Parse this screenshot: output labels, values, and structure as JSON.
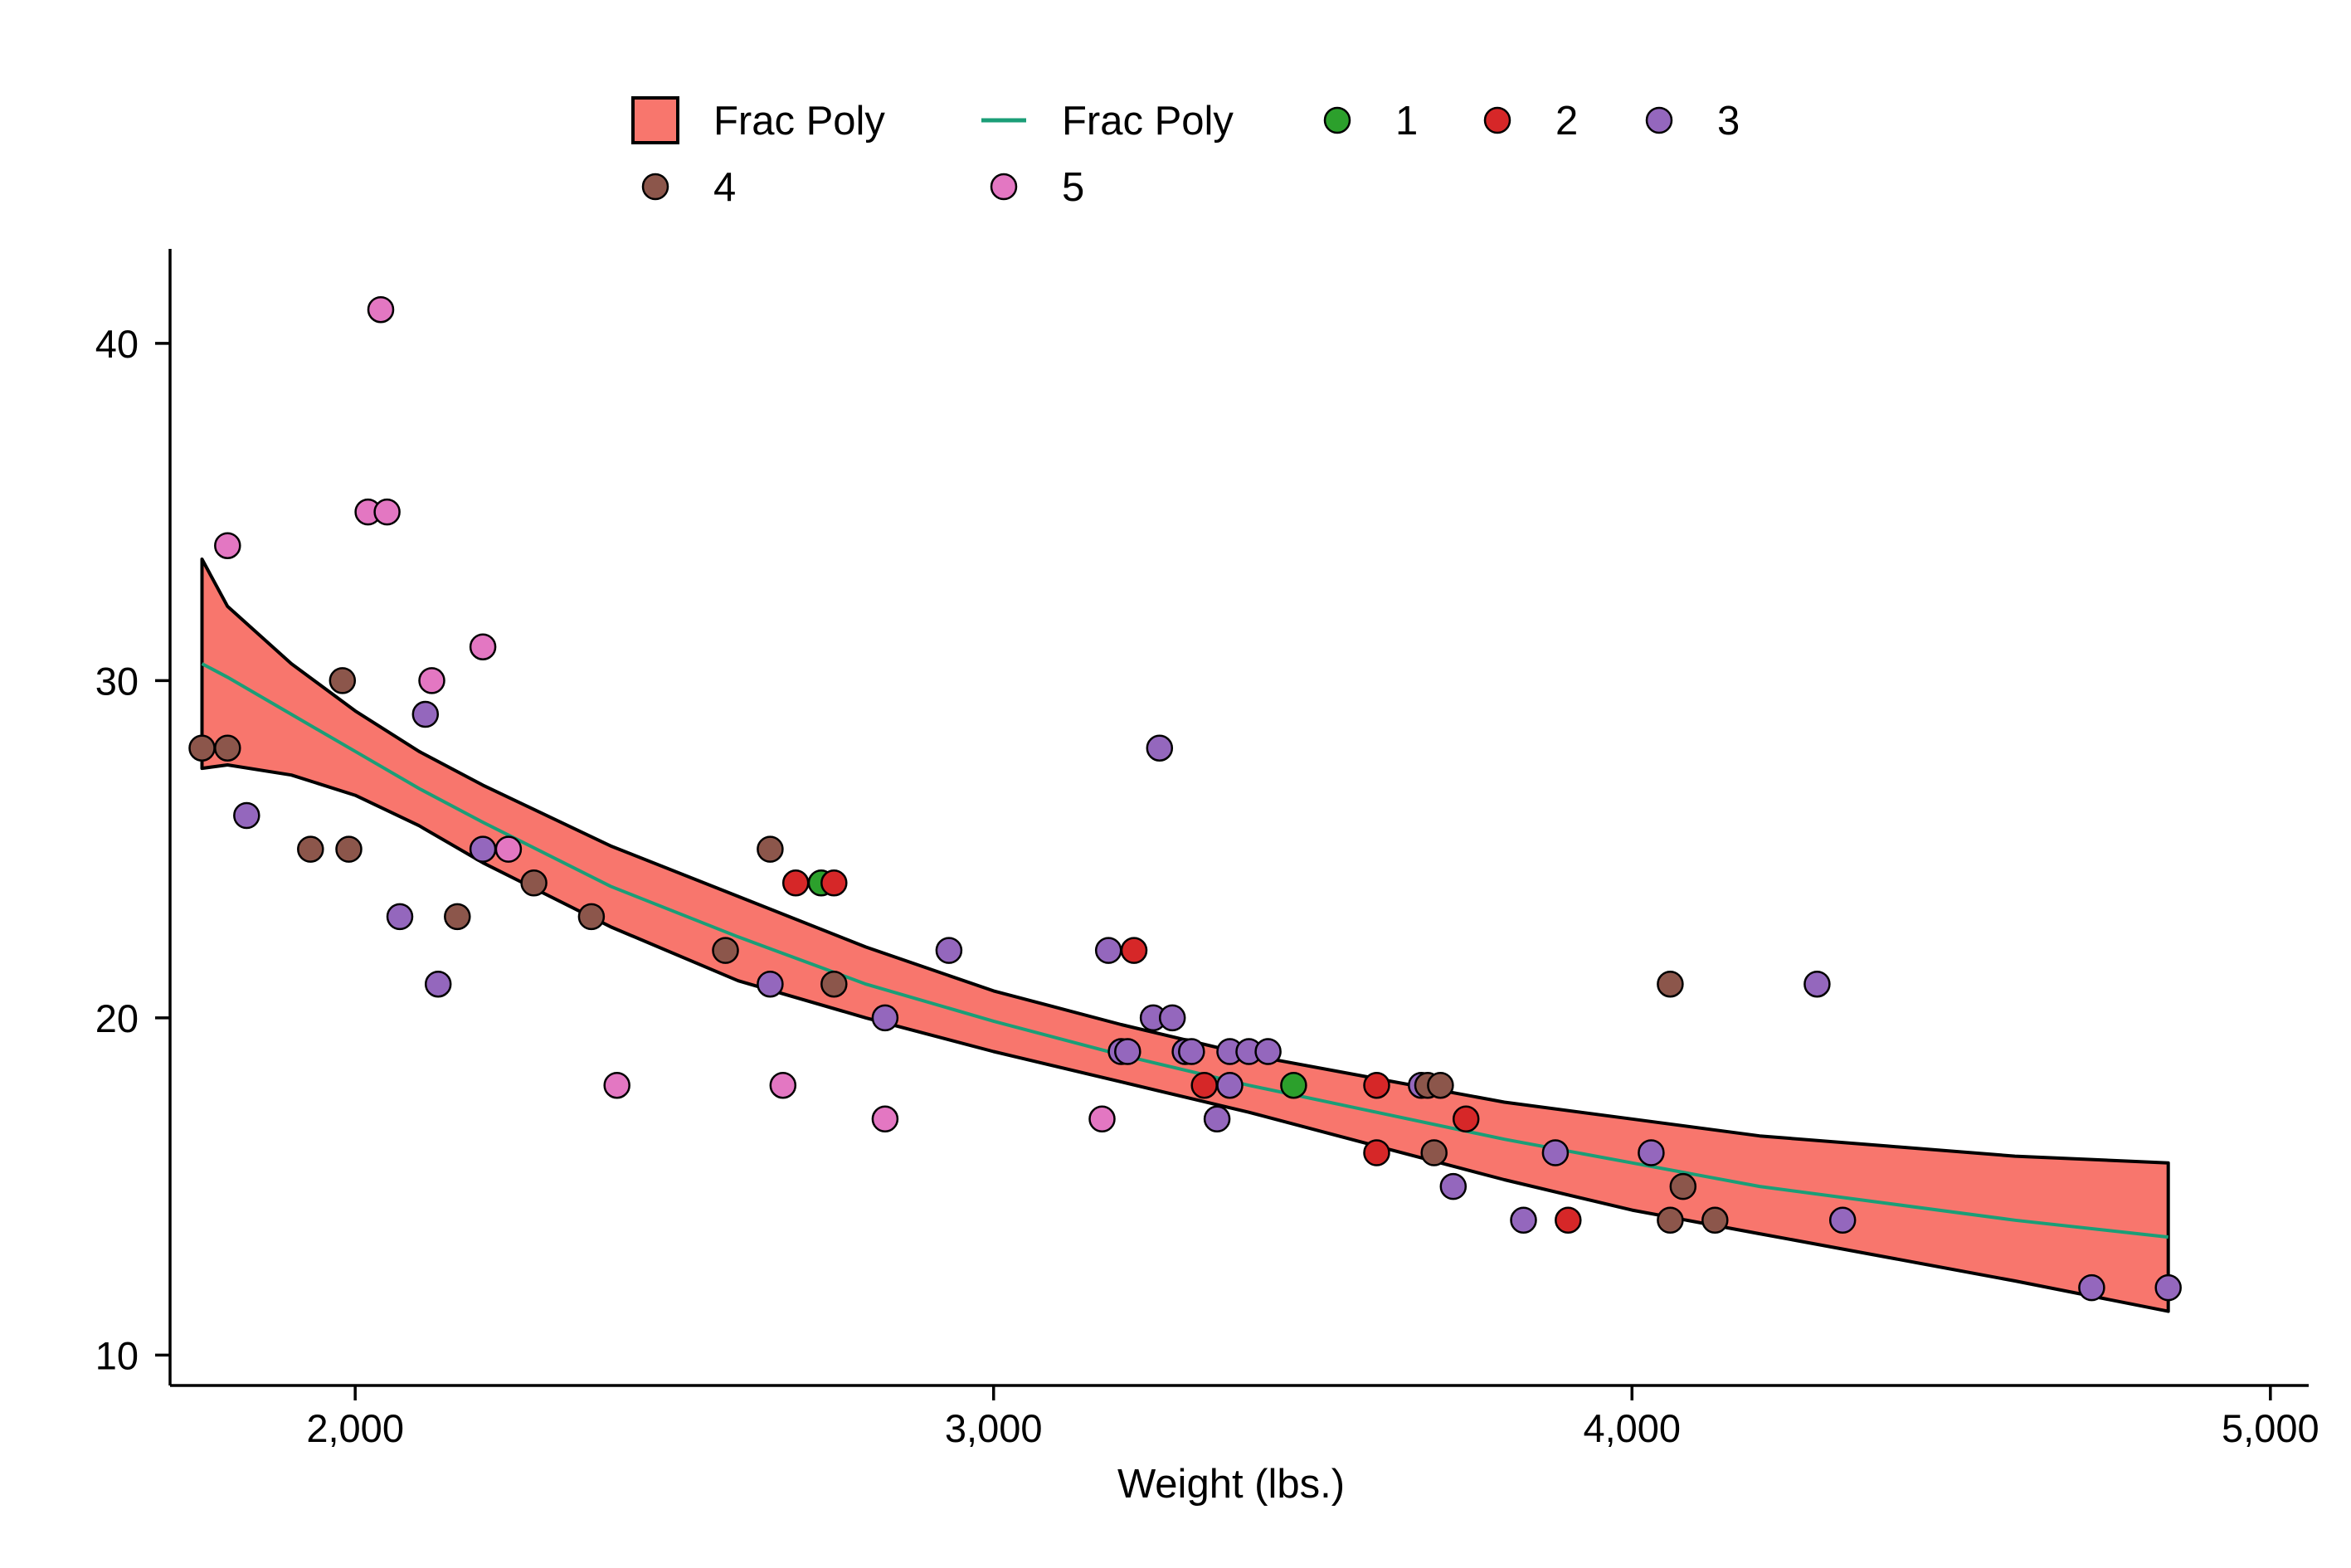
{
  "chart_data": {
    "type": "scatter",
    "title": "",
    "xlabel": "Weight (lbs.)",
    "ylabel": "",
    "xlim": [
      1710,
      5060
    ],
    "ylim": [
      9.1,
      42.8
    ],
    "x_ticks": [
      2000,
      3000,
      4000,
      5000
    ],
    "x_tick_labels": [
      "2,000",
      "3,000",
      "4,000",
      "5,000"
    ],
    "y_ticks": [
      10,
      20,
      30,
      40
    ],
    "y_tick_labels": [
      "10",
      "20",
      "30",
      "40"
    ],
    "grid": false,
    "legend_position": "top",
    "legend": [
      {
        "label": "Frac Poly",
        "kind": "band",
        "color": "#f8766d"
      },
      {
        "label": "Frac Poly",
        "kind": "line",
        "color": "#1b9e77"
      },
      {
        "label": "1",
        "kind": "marker",
        "color": "#2ca02c"
      },
      {
        "label": "2",
        "kind": "marker",
        "color": "#d62728"
      },
      {
        "label": "3",
        "kind": "marker",
        "color": "#9467bd"
      },
      {
        "label": "4",
        "kind": "marker",
        "color": "#8c564b"
      },
      {
        "label": "5",
        "kind": "marker",
        "color": "#e377c2"
      }
    ],
    "band": {
      "name": "Frac Poly",
      "color": "#f8766d",
      "x": [
        1760,
        1800,
        1900,
        2000,
        2100,
        2200,
        2400,
        2600,
        2800,
        3000,
        3200,
        3400,
        3600,
        3800,
        4000,
        4200,
        4400,
        4600,
        4840
      ],
      "upper": [
        33.6,
        32.2,
        30.5,
        29.1,
        27.9,
        26.9,
        25.1,
        23.6,
        22.1,
        20.8,
        19.8,
        18.9,
        18.2,
        17.5,
        17.0,
        16.5,
        16.2,
        15.9,
        15.7
      ],
      "lower": [
        27.4,
        27.5,
        27.2,
        26.6,
        25.7,
        24.6,
        22.7,
        21.1,
        20.0,
        19.0,
        18.1,
        17.2,
        16.2,
        15.2,
        14.3,
        13.6,
        12.9,
        12.2,
        11.3
      ]
    },
    "fit": {
      "name": "Frac Poly",
      "color": "#1b9e77",
      "x": [
        1760,
        1800,
        1900,
        2000,
        2100,
        2200,
        2400,
        2600,
        2800,
        3000,
        3200,
        3400,
        3600,
        3800,
        4000,
        4200,
        4400,
        4600,
        4840
      ],
      "y": [
        30.5,
        30.1,
        29.0,
        27.9,
        26.8,
        25.8,
        23.9,
        22.4,
        21.0,
        19.9,
        18.9,
        18.0,
        17.2,
        16.4,
        15.7,
        15.0,
        14.5,
        14.0,
        13.5
      ]
    },
    "series": [
      {
        "name": "1",
        "color": "#2ca02c",
        "points": [
          [
            2730,
            24
          ],
          [
            3470,
            18
          ]
        ]
      },
      {
        "name": "2",
        "color": "#d62728",
        "points": [
          [
            2690,
            24
          ],
          [
            2750,
            24
          ],
          [
            3220,
            22
          ],
          [
            3330,
            18
          ],
          [
            3600,
            18
          ],
          [
            3600,
            16
          ],
          [
            3740,
            17
          ],
          [
            3900,
            14
          ]
        ]
      },
      {
        "name": "3",
        "color": "#9467bd",
        "points": [
          [
            1830,
            26
          ],
          [
            2110,
            29
          ],
          [
            2070,
            23
          ],
          [
            2130,
            21
          ],
          [
            2200,
            25
          ],
          [
            2650,
            21
          ],
          [
            2830,
            20
          ],
          [
            2930,
            22
          ],
          [
            3180,
            22
          ],
          [
            3200,
            19
          ],
          [
            3210,
            19
          ],
          [
            3250,
            20
          ],
          [
            3260,
            28
          ],
          [
            3280,
            20
          ],
          [
            3300,
            19
          ],
          [
            3310,
            19
          ],
          [
            3350,
            17
          ],
          [
            3370,
            19
          ],
          [
            3370,
            18
          ],
          [
            3400,
            19
          ],
          [
            3430,
            19
          ],
          [
            3670,
            18
          ],
          [
            3720,
            15
          ],
          [
            3830,
            14
          ],
          [
            3880,
            16
          ],
          [
            4030,
            16
          ],
          [
            4290,
            21
          ],
          [
            4330,
            14
          ],
          [
            4720,
            12
          ],
          [
            4840,
            12
          ]
        ]
      },
      {
        "name": "4",
        "color": "#8c564b",
        "points": [
          [
            1760,
            28
          ],
          [
            1800,
            28
          ],
          [
            1930,
            25
          ],
          [
            1980,
            30
          ],
          [
            1990,
            25
          ],
          [
            2160,
            23
          ],
          [
            2280,
            24
          ],
          [
            2370,
            23
          ],
          [
            2580,
            22
          ],
          [
            2650,
            25
          ],
          [
            2750,
            21
          ],
          [
            3680,
            18
          ],
          [
            3690,
            16
          ],
          [
            3700,
            18
          ],
          [
            4060,
            21
          ],
          [
            4060,
            14
          ],
          [
            4080,
            15
          ],
          [
            4130,
            14
          ]
        ]
      },
      {
        "name": "5",
        "color": "#e377c2",
        "points": [
          [
            1800,
            34
          ],
          [
            2020,
            35
          ],
          [
            2040,
            41
          ],
          [
            2050,
            35
          ],
          [
            2120,
            30
          ],
          [
            2200,
            31
          ],
          [
            2240,
            25
          ],
          [
            2410,
            18
          ],
          [
            2670,
            18
          ],
          [
            2830,
            17
          ],
          [
            3170,
            17
          ]
        ]
      }
    ]
  }
}
